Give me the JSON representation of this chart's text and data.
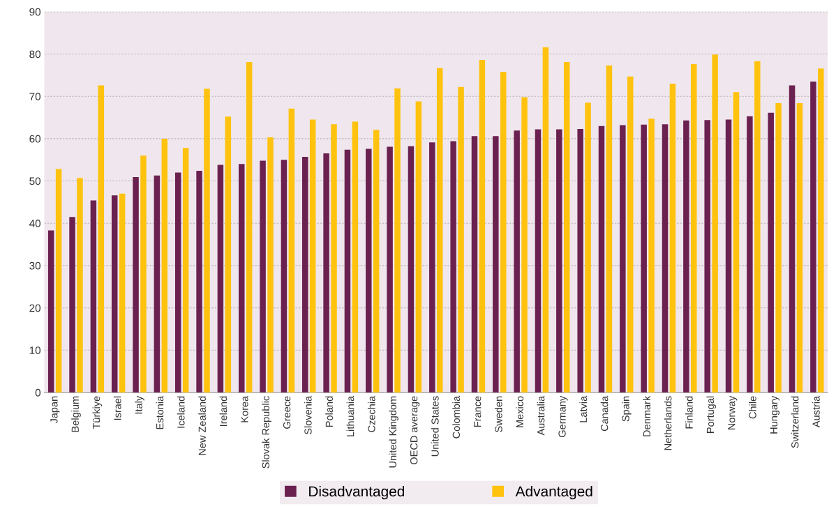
{
  "chart_data": {
    "type": "bar",
    "categories": [
      "Japan",
      "Belgium",
      "Türkiye",
      "Israel",
      "Italy",
      "Estonia",
      "Iceland",
      "New Zealand",
      "Ireland",
      "Korea",
      "Slovak Republic",
      "Greece",
      "Slovenia",
      "Poland",
      "Lithuania",
      "Czechia",
      "United Kingdom",
      "OECD average",
      "United States",
      "Colombia",
      "France",
      "Sweden",
      "Mexico",
      "Australia",
      "Germany",
      "Latvia",
      "Canada",
      "Spain",
      "Denmark",
      "Netherlands",
      "Finland",
      "Portugal",
      "Norway",
      "Chile",
      "Hungary",
      "Switzerland",
      "Austria"
    ],
    "series": [
      {
        "name": "Disadvantaged",
        "color": "#6b2150",
        "values": [
          38.3,
          41.5,
          45.4,
          46.6,
          50.9,
          51.3,
          52.0,
          52.4,
          53.8,
          54.0,
          54.8,
          55.0,
          55.7,
          56.5,
          57.4,
          57.6,
          58.1,
          58.2,
          59.1,
          59.4,
          60.6,
          60.6,
          61.9,
          62.2,
          62.2,
          62.3,
          63.0,
          63.2,
          63.3,
          63.4,
          64.3,
          64.4,
          64.5,
          65.3,
          66.1,
          72.6,
          73.5
        ]
      },
      {
        "name": "Advantaged",
        "color": "#ffc20e",
        "values": [
          52.8,
          50.7,
          72.6,
          47.0,
          56.0,
          60.0,
          57.8,
          71.8,
          65.2,
          78.1,
          60.3,
          67.1,
          64.5,
          63.4,
          64.0,
          62.1,
          71.9,
          68.8,
          76.7,
          72.2,
          78.6,
          75.8,
          69.8,
          81.6,
          78.1,
          68.5,
          77.3,
          74.7,
          64.7,
          73.0,
          77.6,
          79.9,
          71.0,
          78.3,
          68.4,
          68.4,
          76.6
        ]
      }
    ],
    "ylim": [
      0,
      90
    ],
    "yticks": [
      0,
      10,
      20,
      30,
      40,
      50,
      60,
      70,
      80,
      90
    ],
    "grid": "y",
    "legend": "bottom"
  }
}
